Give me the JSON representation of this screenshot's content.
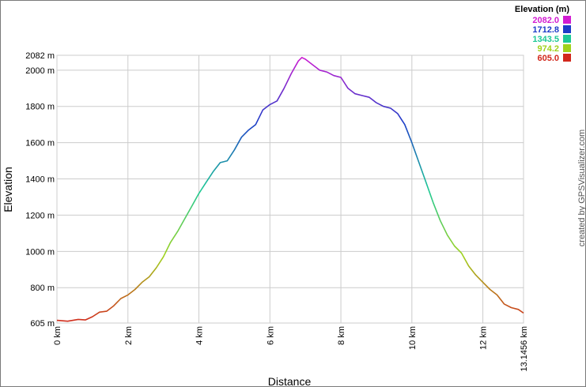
{
  "chart_data": {
    "type": "line",
    "title": "",
    "xlabel": "Distance",
    "ylabel": "Elevation",
    "xlim": [
      0,
      13.1456
    ],
    "ylim": [
      605,
      2082
    ],
    "grid": true,
    "x_ticks": [
      {
        "value": 0,
        "label": "0 km"
      },
      {
        "value": 2,
        "label": "2 km"
      },
      {
        "value": 4,
        "label": "4 km"
      },
      {
        "value": 6,
        "label": "6 km"
      },
      {
        "value": 8,
        "label": "8 km"
      },
      {
        "value": 10,
        "label": "10 km"
      },
      {
        "value": 12,
        "label": "12 km"
      },
      {
        "value": 13.1456,
        "label": "13.1456 km"
      }
    ],
    "y_ticks": [
      {
        "value": 605,
        "label": "605 m"
      },
      {
        "value": 800,
        "label": "800 m"
      },
      {
        "value": 1000,
        "label": "1000 m"
      },
      {
        "value": 1200,
        "label": "1200 m"
      },
      {
        "value": 1400,
        "label": "1400 m"
      },
      {
        "value": 1600,
        "label": "1600 m"
      },
      {
        "value": 1800,
        "label": "1800 m"
      },
      {
        "value": 2000,
        "label": "2000 m"
      },
      {
        "value": 2082,
        "label": "2082 m"
      }
    ],
    "legend": {
      "title": "Elevation (m)",
      "position": "top-right",
      "entries": [
        {
          "label": "2082.0",
          "color": "#d21cd2"
        },
        {
          "label": "1712.8",
          "color": "#1c3cc8"
        },
        {
          "label": "1343.5",
          "color": "#1cc896"
        },
        {
          "label": "974.2",
          "color": "#a0d21c"
        },
        {
          "label": "605.0",
          "color": "#d2281c"
        }
      ]
    },
    "series": [
      {
        "x": [
          0,
          0.3,
          0.6,
          0.8,
          1.0,
          1.2,
          1.4,
          1.6,
          1.8,
          2.0,
          2.2,
          2.4,
          2.6,
          2.8,
          3.0,
          3.2,
          3.4,
          3.6,
          3.8,
          4.0,
          4.2,
          4.4,
          4.6,
          4.8,
          5.0,
          5.2,
          5.4,
          5.6,
          5.8,
          6.0,
          6.2,
          6.4,
          6.6,
          6.8,
          6.9,
          7.0,
          7.2,
          7.4,
          7.6,
          7.8,
          8.0,
          8.2,
          8.4,
          8.6,
          8.8,
          9.0,
          9.2,
          9.4,
          9.6,
          9.8,
          10.0,
          10.2,
          10.4,
          10.6,
          10.8,
          11.0,
          11.2,
          11.4,
          11.6,
          11.8,
          12.0,
          12.2,
          12.4,
          12.6,
          12.8,
          13.0,
          13.1456
        ],
        "y": [
          620,
          615,
          625,
          622,
          640,
          665,
          670,
          700,
          740,
          760,
          790,
          830,
          860,
          910,
          970,
          1050,
          1110,
          1180,
          1250,
          1320,
          1380,
          1440,
          1490,
          1500,
          1560,
          1630,
          1670,
          1700,
          1780,
          1810,
          1830,
          1900,
          1980,
          2050,
          2070,
          2060,
          2030,
          2000,
          1990,
          1970,
          1960,
          1900,
          1870,
          1860,
          1850,
          1820,
          1800,
          1790,
          1760,
          1700,
          1600,
          1490,
          1380,
          1270,
          1170,
          1090,
          1030,
          990,
          920,
          870,
          830,
          790,
          760,
          710,
          690,
          680,
          660
        ]
      }
    ]
  },
  "credit": "created by GPSVisualizer.com"
}
